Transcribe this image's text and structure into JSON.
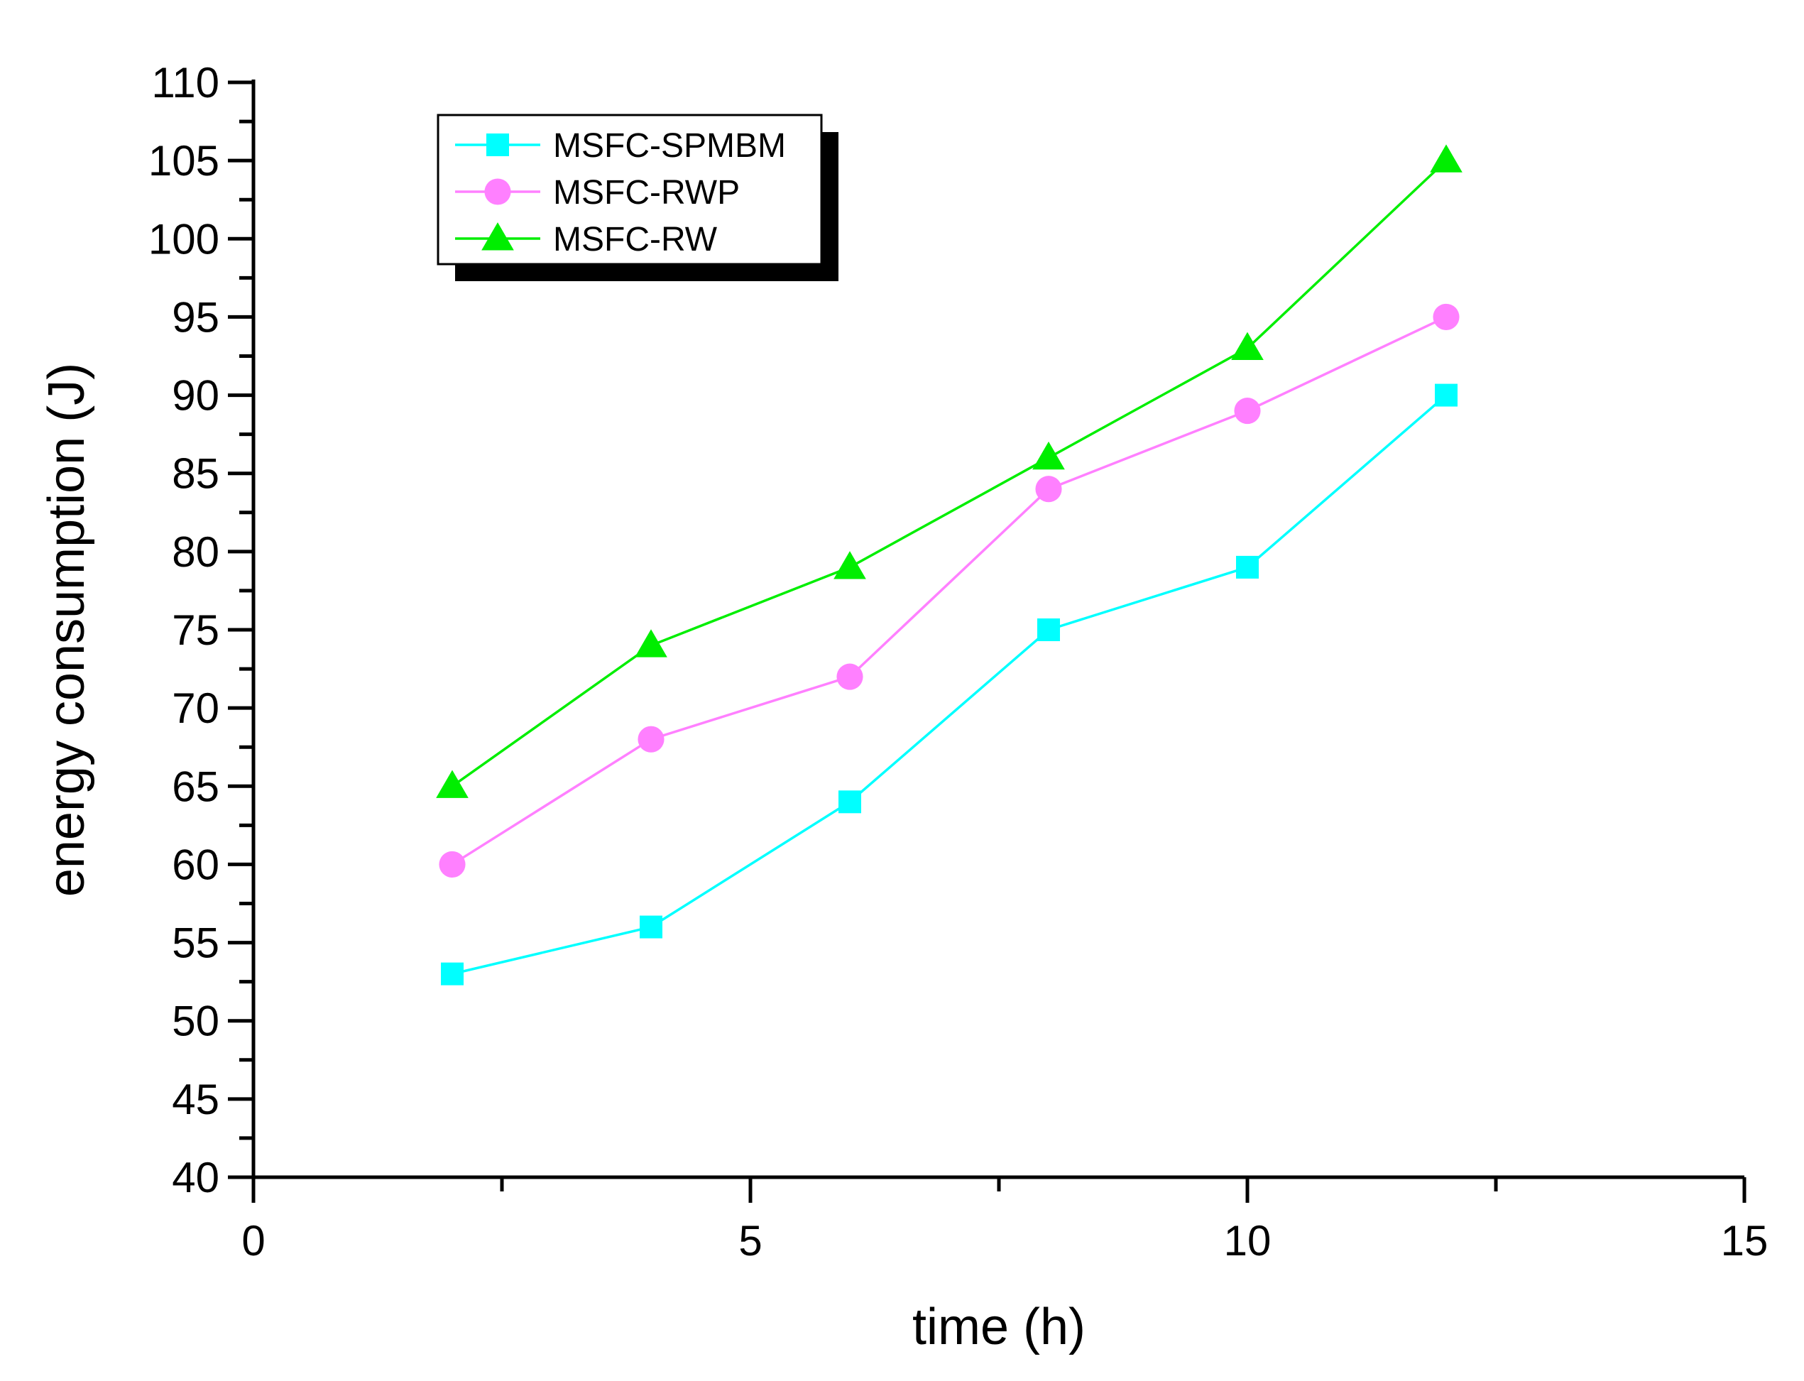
{
  "chart_data": {
    "type": "line",
    "title": "",
    "xlabel": "time (h)",
    "ylabel": "energy consumption (J)",
    "xlim": [
      0,
      15
    ],
    "ylim": [
      40,
      110
    ],
    "xticks": [
      0,
      5,
      10,
      15
    ],
    "yticks": [
      40,
      45,
      50,
      55,
      60,
      65,
      70,
      75,
      80,
      85,
      90,
      95,
      100,
      105,
      110
    ],
    "grid": false,
    "legend_position": "top-left",
    "x": [
      2,
      4,
      6,
      8,
      10,
      12
    ],
    "series": [
      {
        "name": "MSFC-SPMBM",
        "marker": "square",
        "color": "#00ffff",
        "values": [
          53,
          56,
          64,
          75,
          79,
          90
        ]
      },
      {
        "name": "MSFC-RWP",
        "marker": "circle",
        "color": "#ff80ff",
        "values": [
          60,
          68,
          72,
          84,
          89,
          95
        ]
      },
      {
        "name": "MSFC-RW",
        "marker": "triangle",
        "color": "#00ee00",
        "values": [
          65,
          74,
          79,
          86,
          93,
          105
        ]
      }
    ]
  }
}
